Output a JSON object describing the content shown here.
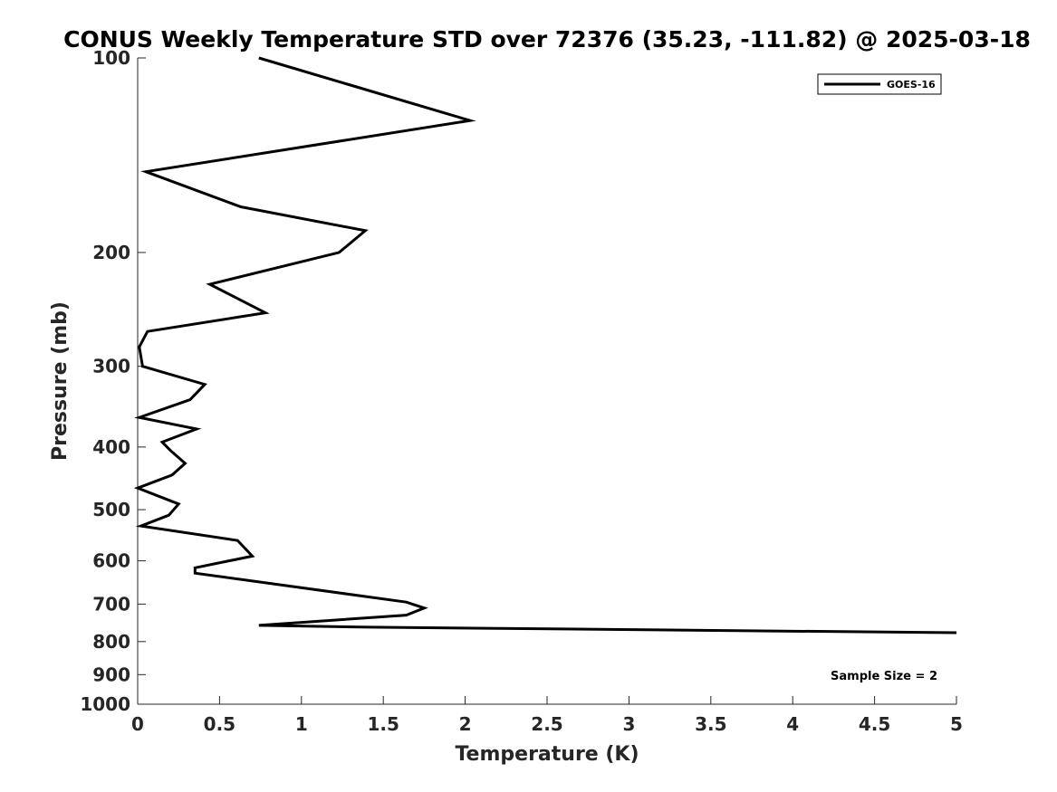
{
  "chart_data": {
    "type": "line",
    "title": "CONUS Weekly Temperature STD over 72376 (35.23, -111.82) @ 2025-03-18",
    "xlabel": "Temperature (K)",
    "ylabel": "Pressure (mb)",
    "xlim": [
      0,
      5
    ],
    "ylim": [
      100,
      1000
    ],
    "y_scale": "log",
    "y_reversed": true,
    "x_ticks": [
      "0",
      "0.5",
      "1",
      "1.5",
      "2",
      "2.5",
      "3",
      "3.5",
      "4",
      "4.5",
      "5"
    ],
    "y_ticks": [
      "100",
      "200",
      "300",
      "400",
      "500",
      "600",
      "700",
      "800",
      "900",
      "1000"
    ],
    "grid": false,
    "legend_position": "top-right",
    "annotation": "Sample Size = 2",
    "series": [
      {
        "name": "GOES-16",
        "color": "#000000",
        "x": [
          0.74,
          2.03,
          0.05,
          0.63,
          1.39,
          1.23,
          0.44,
          0.78,
          0.06,
          0.01,
          0.03,
          0.41,
          0.32,
          0.01,
          0.36,
          0.15,
          0.2,
          0.29,
          0.21,
          0.0,
          0.25,
          0.19,
          0.02,
          0.61,
          0.7,
          0.35,
          0.35,
          1.64,
          1.75,
          1.64,
          0.74,
          1.41,
          5.0
        ],
        "y": [
          100,
          125,
          150,
          170,
          185,
          200,
          224,
          248,
          265,
          280,
          300,
          320,
          338,
          360,
          375,
          393,
          405,
          424,
          442,
          463,
          490,
          510,
          530,
          558,
          590,
          615,
          627,
          695,
          710,
          728,
          755,
          760,
          775
        ]
      }
    ]
  }
}
